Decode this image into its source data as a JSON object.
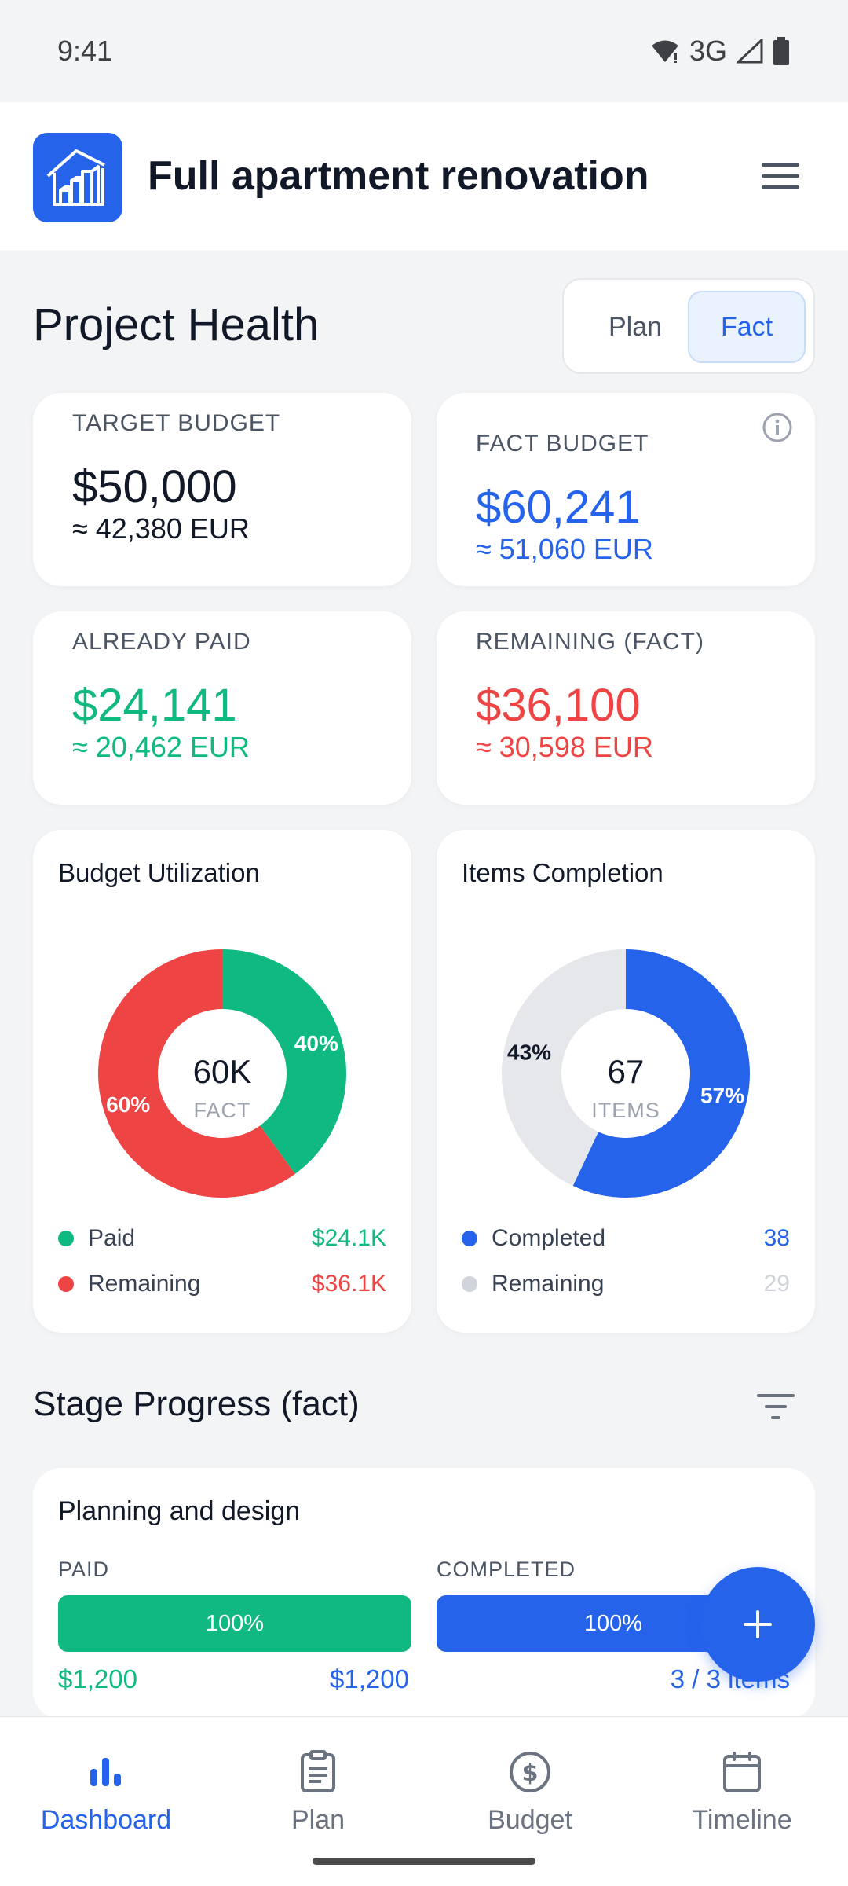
{
  "status_bar": {
    "time": "9:41",
    "network": "3G"
  },
  "app": {
    "title": "Full apartment renovation"
  },
  "health": {
    "title": "Project Health",
    "toggle": {
      "plan": "Plan",
      "fact": "Fact",
      "selected": "Fact"
    }
  },
  "cards": {
    "target_budget": {
      "label": "TARGET BUDGET",
      "amount": "$50,000",
      "eur": "≈ 42,380 EUR"
    },
    "fact_budget": {
      "label": "FACT BUDGET",
      "amount": "$60,241",
      "eur": "≈ 51,060 EUR"
    },
    "already_paid": {
      "label": "ALREADY PAID",
      "amount": "$24,141",
      "eur": "≈ 20,462 EUR"
    },
    "remaining": {
      "label": "REMAINING (FACT)",
      "amount": "$36,100",
      "eur": "≈ 30,598 EUR"
    }
  },
  "chart_data": [
    {
      "type": "pie",
      "title": "Budget Utilization",
      "center_value": "60K",
      "center_label": "FACT",
      "categories": [
        "Paid",
        "Remaining"
      ],
      "values": [
        40,
        60
      ],
      "slice_labels": [
        "40%",
        "60%"
      ],
      "legend_values": [
        "$24.1K",
        "$36.1K"
      ],
      "colors": [
        "#10b981",
        "#ef4444"
      ]
    },
    {
      "type": "pie",
      "title": "Items Completion",
      "center_value": "67",
      "center_label": "ITEMS",
      "categories": [
        "Completed",
        "Remaining"
      ],
      "values": [
        57,
        43
      ],
      "slice_labels": [
        "57%",
        "43%"
      ],
      "legend_values": [
        "38",
        "29"
      ],
      "colors": [
        "#2563eb",
        "#e5e7eb"
      ]
    }
  ],
  "stage_progress": {
    "title": "Stage Progress (fact)",
    "stages": [
      {
        "name": "Planning and design",
        "paid_label": "PAID",
        "paid_fraction": 1.0,
        "paid_bar_text": "100%",
        "paid_amount": "$1,200",
        "paid_total": "$1,200",
        "completed_label": "COMPLETED",
        "completed_fraction": 1.0,
        "completed_bar_text": "100%",
        "completed_items": "3 / 3 items"
      }
    ]
  },
  "nav": {
    "items": [
      {
        "label": "Dashboard",
        "icon": "bar-chart-icon"
      },
      {
        "label": "Plan",
        "icon": "clipboard-icon"
      },
      {
        "label": "Budget",
        "icon": "dollar-circle-icon"
      },
      {
        "label": "Timeline",
        "icon": "calendar-icon"
      }
    ],
    "active": "Dashboard"
  },
  "colors": {
    "accent": "#2563eb",
    "green": "#10b981",
    "red": "#ef4444",
    "grey": "#e5e7eb"
  }
}
